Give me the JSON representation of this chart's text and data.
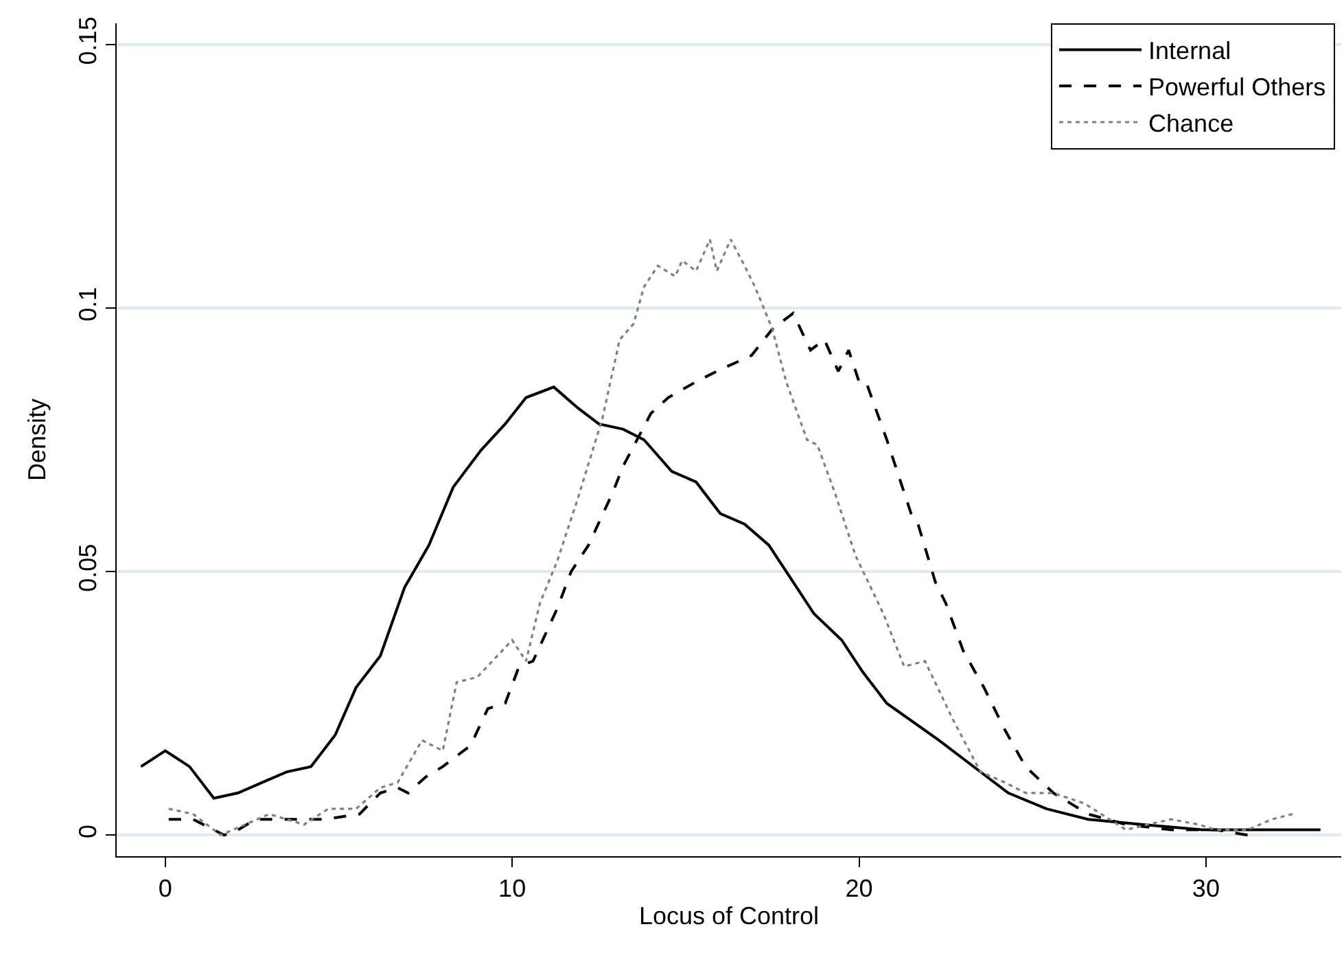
{
  "chart_data": {
    "type": "line",
    "xlabel": "Locus of Control",
    "ylabel": "Density",
    "xlim": [
      -1.4,
      33.9
    ],
    "ylim": [
      -0.004,
      0.154
    ],
    "xticks": [
      0,
      10,
      20,
      30
    ],
    "yticks": [
      0,
      0.05,
      0.1,
      0.15
    ],
    "grid": "y",
    "legend": "top right",
    "marker": "none",
    "series": [
      {
        "name": "Internal",
        "color": "#000000",
        "line_style": "solid",
        "x": [
          -0.7,
          0,
          0.7,
          1.4,
          2.1,
          2.8,
          3.5,
          4.2,
          4.9,
          5.5,
          6.2,
          6.9,
          7.6,
          8.3,
          9.1,
          9.8,
          10.4,
          11.2,
          11.9,
          12.5,
          13.2,
          13.8,
          14.6,
          15.3,
          16.0,
          16.7,
          17.4,
          18.1,
          18.7,
          19.5,
          20.1,
          20.8,
          22.3,
          23.7,
          24.3,
          25.4,
          26.6,
          28.2,
          29.9,
          31.1,
          33.3
        ],
        "values": [
          0.013,
          0.016,
          0.013,
          0.007,
          0.008,
          0.01,
          0.012,
          0.013,
          0.019,
          0.028,
          0.034,
          0.047,
          0.055,
          0.066,
          0.073,
          0.078,
          0.083,
          0.085,
          0.081,
          0.078,
          0.077,
          0.075,
          0.069,
          0.067,
          0.061,
          0.059,
          0.055,
          0.048,
          0.042,
          0.037,
          0.031,
          0.025,
          0.018,
          0.011,
          0.008,
          0.005,
          0.003,
          0.002,
          0.001,
          0.001,
          0.001
        ]
      },
      {
        "name": "Powerful Others",
        "color": "#000000",
        "line_style": "dashed",
        "x": [
          0.1,
          0.8,
          1.7,
          2.1,
          2.6,
          3.3,
          3.9,
          4.6,
          5.6,
          6.2,
          6.7,
          7.0,
          7.5,
          8.0,
          8.8,
          9.3,
          9.8,
          10.2,
          10.6,
          11.3,
          11.7,
          12.2,
          12.9,
          13.2,
          14.0,
          14.5,
          15.3,
          15.9,
          16.9,
          17.5,
          18.1,
          18.6,
          19.0,
          19.4,
          19.7,
          20.0,
          20.2,
          20.8,
          21.5,
          21.7,
          22.2,
          22.5,
          23.0,
          23.6,
          24.2,
          24.8,
          25.6,
          26.6,
          27.7,
          29.0,
          30.3,
          31.2
        ],
        "values": [
          0.003,
          0.003,
          0,
          0.001,
          0.003,
          0.003,
          0.003,
          0.003,
          0.004,
          0.008,
          0.009,
          0.008,
          0.011,
          0.013,
          0.017,
          0.024,
          0.025,
          0.032,
          0.033,
          0.043,
          0.05,
          0.055,
          0.065,
          0.07,
          0.08,
          0.083,
          0.086,
          0.088,
          0.091,
          0.096,
          0.099,
          0.092,
          0.094,
          0.088,
          0.092,
          0.086,
          0.086,
          0.075,
          0.061,
          0.059,
          0.048,
          0.044,
          0.035,
          0.028,
          0.02,
          0.013,
          0.008,
          0.004,
          0.002,
          0.001,
          0.001,
          0
        ]
      },
      {
        "name": "Chance",
        "color": "#808080",
        "line_style": "dotted",
        "x": [
          0.1,
          0.8,
          1.6,
          2.3,
          3.0,
          4.0,
          4.7,
          5.5,
          6.2,
          6.7,
          7.4,
          8.0,
          8.4,
          9.0,
          10.0,
          10.4,
          10.8,
          11.3,
          11.9,
          12.6,
          13.1,
          13.5,
          13.8,
          14.2,
          14.7,
          14.9,
          15.3,
          15.7,
          15.9,
          16.3,
          16.7,
          17.0,
          17.5,
          17.9,
          18.5,
          18.8,
          19.3,
          19.9,
          20.7,
          21.3,
          21.9,
          22.7,
          23.5,
          24.2,
          24.8,
          25.6,
          26.5,
          27.7,
          28.3,
          29.0,
          29.8,
          30.3,
          31.2,
          31.9,
          32.5
        ],
        "values": [
          0.005,
          0.004,
          0,
          0.002,
          0.004,
          0.002,
          0.005,
          0.005,
          0.009,
          0.01,
          0.018,
          0.016,
          0.029,
          0.03,
          0.037,
          0.033,
          0.044,
          0.052,
          0.064,
          0.079,
          0.094,
          0.097,
          0.104,
          0.108,
          0.106,
          0.109,
          0.107,
          0.113,
          0.107,
          0.113,
          0.108,
          0.104,
          0.096,
          0.086,
          0.075,
          0.074,
          0.065,
          0.053,
          0.042,
          0.032,
          0.033,
          0.022,
          0.012,
          0.01,
          0.008,
          0.008,
          0.006,
          0.001,
          0.002,
          0.003,
          0.002,
          0.001,
          0.001,
          0.003,
          0.004
        ]
      }
    ]
  }
}
